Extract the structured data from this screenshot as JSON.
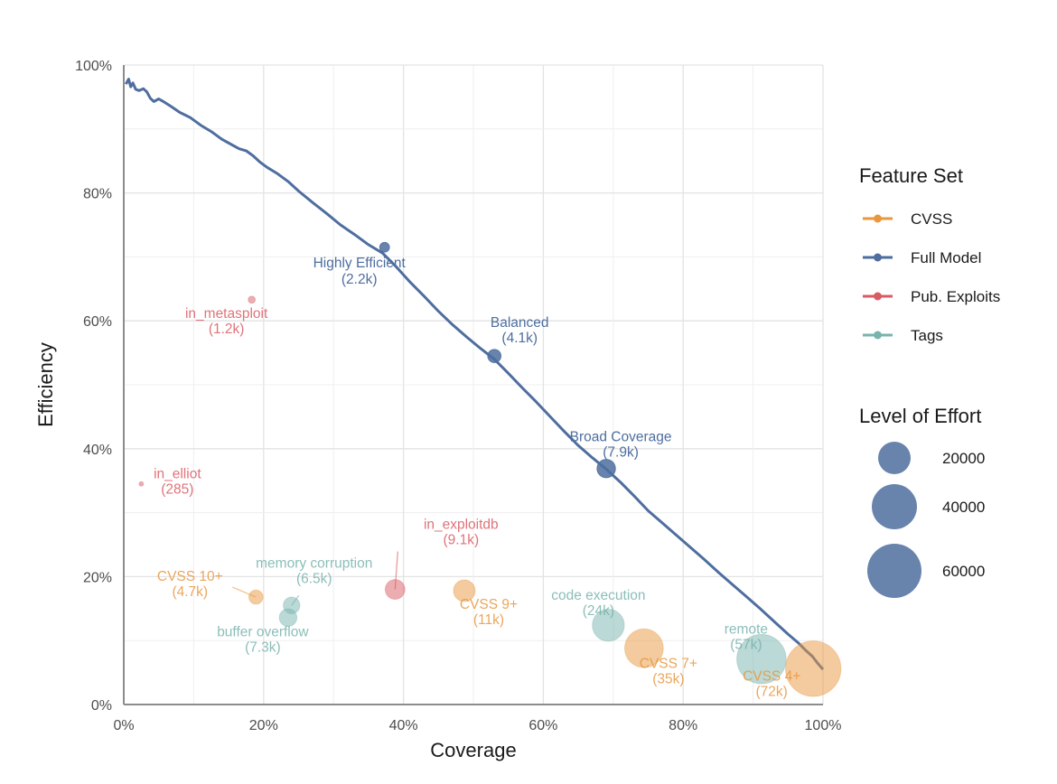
{
  "chart_data": {
    "type": "scatter",
    "title": "",
    "xlabel": "Coverage",
    "ylabel": "Efficiency",
    "xlim": [
      0,
      100
    ],
    "ylim": [
      0,
      100
    ],
    "x_ticks": [
      "0%",
      "20%",
      "40%",
      "60%",
      "80%",
      "100%"
    ],
    "y_ticks": [
      "0%",
      "20%",
      "40%",
      "60%",
      "80%",
      "100%"
    ],
    "x_tick_values": [
      0,
      20,
      40,
      60,
      80,
      100
    ],
    "y_tick_values": [
      0,
      20,
      40,
      60,
      80,
      100
    ],
    "grid": true,
    "colors": {
      "CVSS": "#e8973f",
      "Full Model": "#4e6e9f",
      "Pub. Exploits": "#d95b63",
      "Tags": "#78b3ad"
    },
    "line": {
      "name": "Full Model",
      "x": [
        0.3,
        0.7,
        1.0,
        1.3,
        1.7,
        2.2,
        2.8,
        3.3,
        3.8,
        4.3,
        5.0,
        5.8,
        6.8,
        8.0,
        9.5,
        11.0,
        12.5,
        14.0,
        15.5,
        16.5,
        17.5,
        18.5,
        19.5,
        20.5,
        22.0,
        23.5,
        25.0,
        27.0,
        29.0,
        31.0,
        33.0,
        35.0,
        37.0,
        39.0,
        41.0,
        43.0,
        45.0,
        47.0,
        49.0,
        51.0,
        53.0,
        55.0,
        57.0,
        59.0,
        61.0,
        63.0,
        65.0,
        67.0,
        69.0,
        71.0,
        73.0,
        75.0,
        77.0,
        79.0,
        81.0,
        83.0,
        85.0,
        87.0,
        89.0,
        91.0,
        93.0,
        95.0,
        96.5,
        97.5,
        98.5,
        99.2,
        100.0
      ],
      "y": [
        97.0,
        97.8,
        96.6,
        97.2,
        96.2,
        96.0,
        96.3,
        95.8,
        94.8,
        94.3,
        94.7,
        94.2,
        93.5,
        92.6,
        91.8,
        90.6,
        89.6,
        88.4,
        87.5,
        86.9,
        86.6,
        85.8,
        84.8,
        84.0,
        83.0,
        81.8,
        80.3,
        78.5,
        76.8,
        75.0,
        73.5,
        71.9,
        70.6,
        68.4,
        66.0,
        63.8,
        61.5,
        59.4,
        57.5,
        55.7,
        54.0,
        51.8,
        49.5,
        47.3,
        45.0,
        42.7,
        40.5,
        38.6,
        36.8,
        34.8,
        32.6,
        30.3,
        28.4,
        26.5,
        24.6,
        22.7,
        20.7,
        18.8,
        16.9,
        15.0,
        13.0,
        11.0,
        9.6,
        8.5,
        7.5,
        6.5,
        5.5
      ]
    },
    "points": [
      {
        "label": "Highly Efficient",
        "sub": "(2.2k)",
        "set": "Full Model",
        "x": 37.3,
        "y": 71.5,
        "effort": 2200
      },
      {
        "label": "Balanced",
        "sub": "(4.1k)",
        "set": "Full Model",
        "x": 53.0,
        "y": 54.5,
        "effort": 4100
      },
      {
        "label": "Broad Coverage",
        "sub": "(7.9k)",
        "set": "Full Model",
        "x": 69.0,
        "y": 36.9,
        "effort": 7900
      },
      {
        "label": "in_metasploit",
        "sub": "(1.2k)",
        "set": "Pub. Exploits",
        "x": 18.3,
        "y": 63.3,
        "effort": 1200
      },
      {
        "label": "in_elliot",
        "sub": "(285)",
        "set": "Pub. Exploits",
        "x": 2.5,
        "y": 34.5,
        "effort": 285
      },
      {
        "label": "in_exploitdb",
        "sub": "(9.1k)",
        "set": "Pub. Exploits",
        "x": 38.8,
        "y": 18.0,
        "effort": 9100
      },
      {
        "label": "CVSS 10+",
        "sub": "(4.7k)",
        "set": "CVSS",
        "x": 18.9,
        "y": 16.8,
        "effort": 4700
      },
      {
        "label": "memory corruption",
        "sub": "(6.5k)",
        "set": "Tags",
        "x": 24.0,
        "y": 15.5,
        "effort": 6500
      },
      {
        "label": "buffer overflow",
        "sub": "(7.3k)",
        "set": "Tags",
        "x": 23.5,
        "y": 13.6,
        "effort": 7300
      },
      {
        "label": "CVSS 9+",
        "sub": "(11k)",
        "set": "CVSS",
        "x": 48.7,
        "y": 17.8,
        "effort": 11000
      },
      {
        "label": "code execution",
        "sub": "(24k)",
        "set": "Tags",
        "x": 69.3,
        "y": 12.4,
        "effort": 24000
      },
      {
        "label": "CVSS 7+",
        "sub": "(35k)",
        "set": "CVSS",
        "x": 74.4,
        "y": 8.8,
        "effort": 35000
      },
      {
        "label": "remote",
        "sub": "(57k)",
        "set": "Tags",
        "x": 91.2,
        "y": 7.1,
        "effort": 57000
      },
      {
        "label": "CVSS 4+",
        "sub": "(72k)",
        "set": "CVSS",
        "x": 98.6,
        "y": 5.6,
        "effort": 72000
      }
    ],
    "legend": {
      "position": "right",
      "feature_set_title": "Feature Set",
      "feature_sets": [
        "CVSS",
        "Full Model",
        "Pub. Exploits",
        "Tags"
      ],
      "effort_title": "Level of Effort",
      "effort_values": [
        20000,
        40000,
        60000
      ],
      "effort_labels": [
        "20000",
        "40000",
        "60000"
      ]
    }
  }
}
